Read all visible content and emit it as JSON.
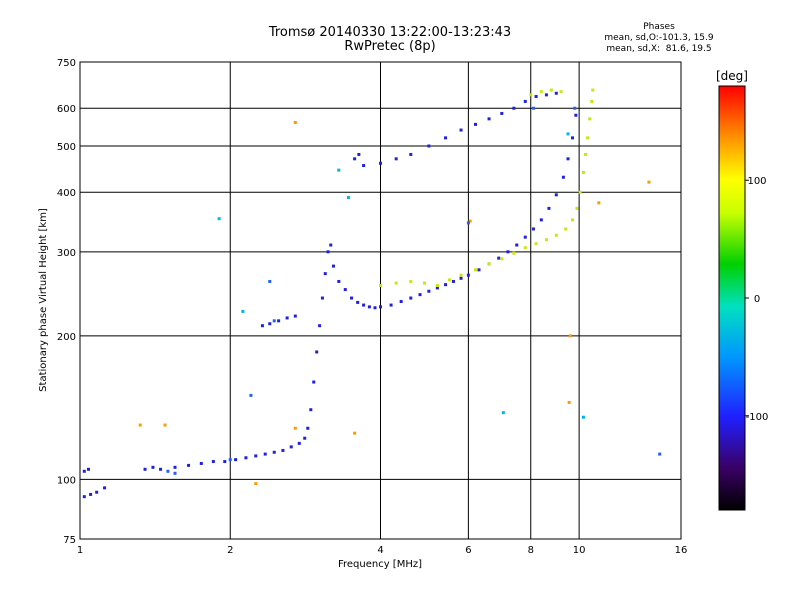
{
  "header": {
    "title_line1": "Tromsø 20140330 13:22:00-13:23:43",
    "title_line2": "RwPretec (8p)"
  },
  "phases": {
    "title": "Phases",
    "line_o": "mean, sd,O:-101.3, 15.9",
    "line_x": "mean, sd,X:  81.6, 19.5"
  },
  "colorbar": {
    "unit": "[deg]",
    "ticks": [
      "100",
      "0",
      "-100"
    ],
    "range": [
      -180,
      180
    ]
  },
  "chart_data": {
    "type": "scatter",
    "title": "Tromsø 20140330 13:22:00-13:23:43",
    "subtitle": "RwPretec (8p)",
    "xlabel": "Frequency [MHz]",
    "ylabel": "Stationary phase Virtual Height [km]",
    "xscale": "log",
    "yscale": "log",
    "xlim": [
      1,
      16
    ],
    "ylim": [
      75,
      750
    ],
    "xticks": [
      "1",
      "2",
      "4",
      "6",
      "8",
      "10",
      "16"
    ],
    "xtick_values": [
      1,
      2,
      4,
      6,
      8,
      10,
      16
    ],
    "yticks": [
      "75",
      "100",
      "200",
      "300",
      "400",
      "500",
      "600",
      "750"
    ],
    "ytick_values": [
      75,
      100,
      200,
      300,
      400,
      500,
      600,
      750
    ],
    "grid": true,
    "color_dimension": "phase [deg]",
    "series": [
      {
        "color": "#2020e0",
        "points": [
          [
            1.02,
            92
          ],
          [
            1.05,
            93
          ],
          [
            1.08,
            94
          ],
          [
            1.12,
            96
          ],
          [
            1.02,
            104
          ],
          [
            1.04,
            105
          ],
          [
            1.35,
            105
          ],
          [
            1.4,
            106
          ],
          [
            1.45,
            105
          ],
          [
            1.55,
            106
          ],
          [
            1.65,
            107
          ],
          [
            1.75,
            108
          ],
          [
            1.85,
            109
          ],
          [
            1.95,
            109
          ],
          [
            2.05,
            110
          ],
          [
            2.15,
            111
          ],
          [
            2.25,
            112
          ],
          [
            2.35,
            113
          ],
          [
            2.45,
            114
          ],
          [
            2.55,
            115
          ],
          [
            2.65,
            117
          ],
          [
            2.75,
            119
          ],
          [
            2.82,
            122
          ],
          [
            2.86,
            128
          ],
          [
            2.9,
            140
          ],
          [
            2.94,
            160
          ],
          [
            2.98,
            185
          ],
          [
            3.02,
            210
          ],
          [
            3.06,
            240
          ],
          [
            3.1,
            270
          ],
          [
            3.14,
            300
          ],
          [
            3.18,
            310
          ],
          [
            3.22,
            280
          ],
          [
            3.3,
            260
          ],
          [
            3.4,
            250
          ],
          [
            3.5,
            240
          ],
          [
            3.6,
            235
          ],
          [
            3.7,
            232
          ],
          [
            3.8,
            230
          ],
          [
            3.9,
            229
          ],
          [
            4.0,
            230
          ],
          [
            4.2,
            232
          ],
          [
            4.4,
            236
          ],
          [
            4.6,
            240
          ],
          [
            4.8,
            244
          ],
          [
            5.0,
            248
          ],
          [
            5.2,
            252
          ],
          [
            5.4,
            256
          ],
          [
            5.6,
            260
          ],
          [
            5.8,
            264
          ],
          [
            6.0,
            268
          ],
          [
            6.3,
            275
          ],
          [
            6.6,
            283
          ],
          [
            6.9,
            291
          ],
          [
            7.2,
            300
          ],
          [
            7.5,
            310
          ],
          [
            7.8,
            322
          ],
          [
            8.1,
            335
          ],
          [
            8.4,
            350
          ],
          [
            8.7,
            370
          ],
          [
            9.0,
            395
          ],
          [
            9.3,
            430
          ],
          [
            9.5,
            470
          ],
          [
            9.7,
            520
          ],
          [
            9.85,
            580
          ],
          [
            2.32,
            210
          ],
          [
            2.4,
            212
          ],
          [
            2.5,
            215
          ],
          [
            2.6,
            218
          ],
          [
            2.7,
            220
          ],
          [
            3.55,
            470
          ],
          [
            3.62,
            480
          ],
          [
            3.7,
            455
          ],
          [
            4.0,
            460
          ],
          [
            4.3,
            470
          ],
          [
            4.6,
            480
          ],
          [
            5.0,
            500
          ],
          [
            5.4,
            520
          ],
          [
            5.8,
            540
          ],
          [
            6.2,
            555
          ],
          [
            6.6,
            570
          ],
          [
            7.0,
            585
          ],
          [
            7.4,
            600
          ],
          [
            7.8,
            620
          ],
          [
            8.2,
            635
          ],
          [
            8.6,
            640
          ],
          [
            9.0,
            645
          ]
        ]
      },
      {
        "color": "#c8e614",
        "points": [
          [
            4.0,
            255
          ],
          [
            4.3,
            258
          ],
          [
            4.6,
            260
          ],
          [
            4.9,
            258
          ],
          [
            5.2,
            255
          ],
          [
            5.5,
            262
          ],
          [
            5.8,
            268
          ],
          [
            6.2,
            275
          ],
          [
            6.6,
            283
          ],
          [
            7.0,
            290
          ],
          [
            7.4,
            298
          ],
          [
            7.8,
            306
          ],
          [
            8.2,
            312
          ],
          [
            8.6,
            318
          ],
          [
            9.0,
            325
          ],
          [
            9.4,
            335
          ],
          [
            9.7,
            350
          ],
          [
            9.9,
            370
          ],
          [
            10.05,
            400
          ],
          [
            10.2,
            440
          ],
          [
            10.3,
            480
          ],
          [
            10.4,
            520
          ],
          [
            10.5,
            570
          ],
          [
            10.6,
            620
          ],
          [
            10.65,
            655
          ],
          [
            8.0,
            640
          ],
          [
            8.4,
            650
          ],
          [
            8.8,
            655
          ],
          [
            9.2,
            650
          ]
        ]
      },
      {
        "color": "#ff9a00",
        "points": [
          [
            1.32,
            130
          ],
          [
            1.48,
            130
          ],
          [
            2.25,
            98
          ],
          [
            2.7,
            128
          ],
          [
            3.55,
            125
          ],
          [
            2.7,
            560
          ],
          [
            6.05,
            348
          ],
          [
            10.95,
            380
          ],
          [
            13.8,
            420
          ],
          [
            9.6,
            200
          ],
          [
            9.55,
            145
          ]
        ]
      },
      {
        "color": "#00b4e6",
        "points": [
          [
            1.9,
            352
          ],
          [
            2.12,
            225
          ],
          [
            7.05,
            138
          ],
          [
            3.45,
            390
          ],
          [
            9.5,
            530
          ],
          [
            3.3,
            445
          ],
          [
            10.2,
            135
          ]
        ]
      },
      {
        "color": "#2060ff",
        "points": [
          [
            1.5,
            104
          ],
          [
            1.55,
            103
          ],
          [
            2.0,
            110
          ],
          [
            2.2,
            150
          ],
          [
            2.4,
            260
          ],
          [
            2.45,
            215
          ],
          [
            14.5,
            113
          ],
          [
            6.0,
            345
          ],
          [
            9.8,
            600
          ],
          [
            8.1,
            600
          ]
        ]
      }
    ]
  }
}
